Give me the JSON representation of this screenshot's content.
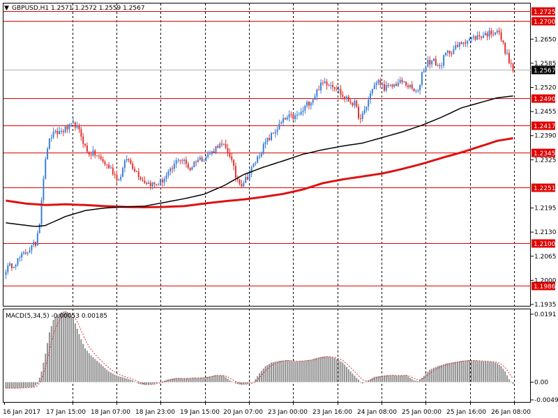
{
  "window": {
    "title_arrow": "▼",
    "title": "GBPUSD,H1  1.2571 1.2572 1.2559 1.2567",
    "indicator_label": "MACD(5,34,5) -0.00053 0.00185"
  },
  "colors": {
    "background": "#ffffff",
    "grid": "#000000",
    "level_line": "#e00000",
    "level_label_bg": "#e00000",
    "candle_up": "#3a7fd5",
    "candle_down": "#e03030",
    "ma_fast": "#000000",
    "ma_slow": "#dd1111",
    "macd_hist": "#909090",
    "macd_signal": "#e03030",
    "price_label_bg": "#000000"
  },
  "chart_data": [
    {
      "type": "candlestick",
      "symbol": "GBPUSD",
      "timeframe": "H1",
      "ylim": [
        1.1935,
        1.2735
      ],
      "y_ticks": [
        "1.2650",
        "1.2585",
        "1.2520",
        "1.2455",
        "1.2390",
        "1.2325",
        "1.2195",
        "1.2130",
        "1.2065",
        "1.2000",
        "1.1935"
      ],
      "x_ticks": [
        "16 Jan 2017",
        "17 Jan 15:00",
        "18 Jan 07:00",
        "18 Jan 23:00",
        "19 Jan 15:00",
        "20 Jan 07:00",
        "23 Jan 00:00",
        "23 Jan 16:00",
        "24 Jan 08:00",
        "25 Jan 00:00",
        "25 Jan 16:00",
        "26 Jan 08:00"
      ],
      "levels": [
        "1.2725",
        "1.2700",
        "1.2490",
        "1.2417",
        "1.2345",
        "1.2251",
        "1.2100",
        "1.1986"
      ],
      "current_price": "1.2567",
      "close_path": [
        [
          0,
          1.203
        ],
        [
          4,
          1.2045
        ],
        [
          8,
          1.2065
        ],
        [
          12,
          1.2085
        ],
        [
          15,
          1.21
        ],
        [
          17,
          1.216
        ],
        [
          19,
          1.228
        ],
        [
          21,
          1.236
        ],
        [
          23,
          1.239
        ],
        [
          27,
          1.24
        ],
        [
          31,
          1.241
        ],
        [
          35,
          1.242
        ],
        [
          38,
          1.239
        ],
        [
          41,
          1.2345
        ],
        [
          45,
          1.234
        ],
        [
          49,
          1.232
        ],
        [
          53,
          1.23
        ],
        [
          57,
          1.227
        ],
        [
          61,
          1.233
        ],
        [
          65,
          1.23
        ],
        [
          69,
          1.227
        ],
        [
          72,
          1.2262
        ],
        [
          75,
          1.2258
        ],
        [
          78,
          1.2265
        ],
        [
          81,
          1.228
        ],
        [
          84,
          1.23
        ],
        [
          87,
          1.233
        ],
        [
          90,
          1.232
        ],
        [
          93,
          1.23
        ],
        [
          96,
          1.2325
        ],
        [
          100,
          1.233
        ],
        [
          104,
          1.2345
        ],
        [
          107,
          1.2365
        ],
        [
          110,
          1.236
        ],
        [
          113,
          1.234
        ],
        [
          116,
          1.228
        ],
        [
          119,
          1.226
        ],
        [
          122,
          1.228
        ],
        [
          125,
          1.231
        ],
        [
          128,
          1.234
        ],
        [
          131,
          1.237
        ],
        [
          134,
          1.239
        ],
        [
          137,
          1.241
        ],
        [
          140,
          1.243
        ],
        [
          143,
          1.244
        ],
        [
          146,
          1.244
        ],
        [
          149,
          1.245
        ],
        [
          152,
          1.2475
        ],
        [
          155,
          1.249
        ],
        [
          158,
          1.252
        ],
        [
          161,
          1.2535
        ],
        [
          164,
          1.253
        ],
        [
          167,
          1.252
        ],
        [
          170,
          1.2495
        ],
        [
          173,
          1.2485
        ],
        [
          176,
          1.2475
        ],
        [
          179,
          1.243
        ],
        [
          182,
          1.247
        ],
        [
          185,
          1.252
        ],
        [
          188,
          1.2535
        ],
        [
          191,
          1.252
        ],
        [
          194,
          1.252
        ],
        [
          197,
          1.253
        ],
        [
          200,
          1.2535
        ],
        [
          203,
          1.2525
        ],
        [
          206,
          1.251
        ],
        [
          208,
          1.2505
        ],
        [
          210,
          1.256
        ],
        [
          213,
          1.259
        ],
        [
          216,
          1.259
        ],
        [
          219,
          1.2575
        ],
        [
          222,
          1.261
        ],
        [
          225,
          1.262
        ],
        [
          228,
          1.263
        ],
        [
          231,
          1.2645
        ],
        [
          234,
          1.265
        ],
        [
          237,
          1.2655
        ],
        [
          240,
          1.266
        ],
        [
          243,
          1.2665
        ],
        [
          246,
          1.267
        ],
        [
          248,
          1.2675
        ],
        [
          250,
          1.265
        ],
        [
          252,
          1.262
        ],
        [
          254,
          1.259
        ],
        [
          256,
          1.2567
        ]
      ],
      "ma_fast": [
        [
          0,
          1.2155
        ],
        [
          15,
          1.2145
        ],
        [
          20,
          1.2148
        ],
        [
          30,
          1.2172
        ],
        [
          40,
          1.2188
        ],
        [
          50,
          1.2195
        ],
        [
          60,
          1.2198
        ],
        [
          70,
          1.22
        ],
        [
          80,
          1.221
        ],
        [
          90,
          1.222
        ],
        [
          100,
          1.2232
        ],
        [
          110,
          1.2255
        ],
        [
          120,
          1.2285
        ],
        [
          130,
          1.2305
        ],
        [
          140,
          1.2322
        ],
        [
          150,
          1.234
        ],
        [
          160,
          1.2352
        ],
        [
          170,
          1.2362
        ],
        [
          180,
          1.237
        ],
        [
          190,
          1.2385
        ],
        [
          200,
          1.24
        ],
        [
          210,
          1.2418
        ],
        [
          220,
          1.244
        ],
        [
          230,
          1.2465
        ],
        [
          240,
          1.248
        ],
        [
          248,
          1.2492
        ],
        [
          256,
          1.2497
        ]
      ],
      "ma_slow": [
        [
          0,
          1.2215
        ],
        [
          10,
          1.2207
        ],
        [
          20,
          1.2203
        ],
        [
          30,
          1.2205
        ],
        [
          40,
          1.2203
        ],
        [
          50,
          1.22
        ],
        [
          60,
          1.2198
        ],
        [
          70,
          1.2197
        ],
        [
          80,
          1.2198
        ],
        [
          90,
          1.22
        ],
        [
          100,
          1.2207
        ],
        [
          110,
          1.2213
        ],
        [
          120,
          1.2218
        ],
        [
          130,
          1.2225
        ],
        [
          140,
          1.2233
        ],
        [
          150,
          1.2245
        ],
        [
          160,
          1.2262
        ],
        [
          170,
          1.2272
        ],
        [
          180,
          1.228
        ],
        [
          190,
          1.2288
        ],
        [
          200,
          1.23
        ],
        [
          210,
          1.2314
        ],
        [
          220,
          1.233
        ],
        [
          230,
          1.2345
        ],
        [
          240,
          1.2362
        ],
        [
          248,
          1.2376
        ],
        [
          256,
          1.2383
        ]
      ]
    },
    {
      "type": "bar",
      "title": "MACD(5,34,5) -0.00053 0.00185",
      "ylim": [
        -0.00499,
        0.0191
      ],
      "y_ticks": [
        "0.0191",
        "0.00",
        "-0.00499"
      ],
      "hist_path": [
        [
          0,
          -0.0017
        ],
        [
          6,
          -0.0017
        ],
        [
          10,
          -0.0015
        ],
        [
          14,
          -0.0014
        ],
        [
          16,
          -0.0005
        ],
        [
          18,
          0.003
        ],
        [
          20,
          0.008
        ],
        [
          22,
          0.014
        ],
        [
          24,
          0.0175
        ],
        [
          26,
          0.019
        ],
        [
          28,
          0.0196
        ],
        [
          30,
          0.02
        ],
        [
          32,
          0.0195
        ],
        [
          34,
          0.018
        ],
        [
          36,
          0.015
        ],
        [
          38,
          0.012
        ],
        [
          40,
          0.0095
        ],
        [
          43,
          0.0075
        ],
        [
          46,
          0.006
        ],
        [
          49,
          0.0045
        ],
        [
          52,
          0.003
        ],
        [
          56,
          0.0018
        ],
        [
          60,
          0.0012
        ],
        [
          64,
          0.0005
        ],
        [
          67,
          -0.0005
        ],
        [
          70,
          -0.0008
        ],
        [
          74,
          -0.0006
        ],
        [
          78,
          0.0
        ],
        [
          82,
          0.0008
        ],
        [
          86,
          0.0012
        ],
        [
          90,
          0.001
        ],
        [
          94,
          0.0012
        ],
        [
          98,
          0.0012
        ],
        [
          102,
          0.0015
        ],
        [
          106,
          0.002
        ],
        [
          110,
          0.0018
        ],
        [
          113,
          0.0005
        ],
        [
          116,
          -0.0004
        ],
        [
          119,
          -0.0008
        ],
        [
          122,
          -0.0005
        ],
        [
          125,
          0.0
        ],
        [
          128,
          0.0025
        ],
        [
          131,
          0.0045
        ],
        [
          134,
          0.0055
        ],
        [
          138,
          0.006
        ],
        [
          142,
          0.0062
        ],
        [
          146,
          0.0058
        ],
        [
          150,
          0.006
        ],
        [
          154,
          0.0063
        ],
        [
          158,
          0.007
        ],
        [
          162,
          0.0073
        ],
        [
          166,
          0.0068
        ],
        [
          170,
          0.0055
        ],
        [
          174,
          0.003
        ],
        [
          177,
          0.0012
        ],
        [
          180,
          -0.0004
        ],
        [
          183,
          0.0005
        ],
        [
          186,
          0.0015
        ],
        [
          190,
          0.0018
        ],
        [
          194,
          0.002
        ],
        [
          198,
          0.0018
        ],
        [
          202,
          0.002
        ],
        [
          206,
          0.0005
        ],
        [
          208,
          0.0003
        ],
        [
          210,
          0.0012
        ],
        [
          214,
          0.0035
        ],
        [
          218,
          0.0045
        ],
        [
          222,
          0.0052
        ],
        [
          226,
          0.0056
        ],
        [
          230,
          0.006
        ],
        [
          234,
          0.0062
        ],
        [
          238,
          0.006
        ],
        [
          242,
          0.0058
        ],
        [
          246,
          0.0057
        ],
        [
          248,
          0.0053
        ],
        [
          250,
          0.0045
        ],
        [
          252,
          0.003
        ],
        [
          254,
          0.0008
        ],
        [
          256,
          -0.0005
        ]
      ],
      "signal_lag": 5
    }
  ]
}
